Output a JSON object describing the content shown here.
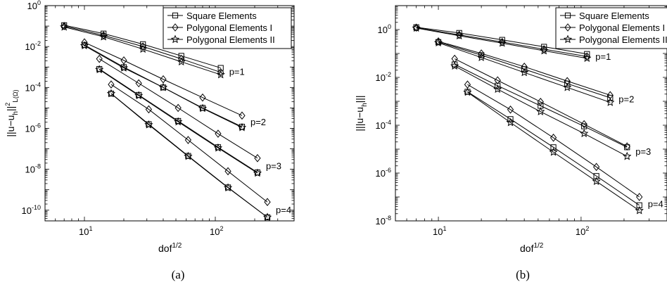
{
  "legend_labels": [
    "Square Elements",
    "Polygonal Elements I",
    "Polygonal Elements II"
  ],
  "chart_data": [
    {
      "type": "line",
      "panel_label": "(a)",
      "xlabel": "dof",
      "xlabel_sup": "1/2",
      "ylabel": "||u−u",
      "ylabel_sub": "h",
      "ylabel_norm": "||",
      "ylabel_sub2": "L",
      "ylabel_sup2": "2",
      "ylabel_dom": "(Ω)",
      "x_scale": "log",
      "y_scale": "log",
      "xlim": [
        5,
        400
      ],
      "ylim": [
        3e-11,
        1
      ],
      "x_ticks": [
        {
          "v": 10,
          "exp": "1"
        },
        {
          "v": 100,
          "exp": "2"
        }
      ],
      "y_ticks": [
        {
          "v": 1,
          "exp": "0"
        },
        {
          "v": 0.01,
          "exp": "-2"
        },
        {
          "v": 0.0001,
          "exp": "-4"
        },
        {
          "v": 1e-06,
          "exp": "-6"
        },
        {
          "v": 1e-08,
          "exp": "-8"
        },
        {
          "v": 1e-10,
          "exp": "-10"
        }
      ],
      "legend_position": "top-right",
      "grid": false,
      "series": [
        {
          "name": "Square Elements",
          "marker": "square",
          "order": "p=1",
          "points": [
            [
              7,
              0.11
            ],
            [
              14,
              0.043
            ],
            [
              28,
              0.013
            ],
            [
              55,
              0.0035
            ],
            [
              110,
              0.0009
            ]
          ]
        },
        {
          "name": "Polygonal Elements I",
          "marker": "diamond",
          "order": "p=1",
          "points": [
            [
              7,
              0.1
            ],
            [
              14,
              0.035
            ],
            [
              28,
              0.01
            ],
            [
              55,
              0.0025
            ],
            [
              110,
              0.00055
            ]
          ]
        },
        {
          "name": "Polygonal Elements II",
          "marker": "star",
          "order": "p=1",
          "points": [
            [
              7,
              0.09
            ],
            [
              14,
              0.03
            ],
            [
              28,
              0.0075
            ],
            [
              55,
              0.0018
            ],
            [
              110,
              0.00042
            ]
          ]
        },
        {
          "name": "Square Elements",
          "marker": "square",
          "order": "p=2",
          "points": [
            [
              10,
              0.012
            ],
            [
              20,
              0.00098
            ],
            [
              40,
              0.0001
            ],
            [
              80,
              1e-05
            ],
            [
              160,
              1.2e-06
            ]
          ]
        },
        {
          "name": "Polygonal Elements I",
          "marker": "diamond",
          "order": "p=2",
          "points": [
            [
              10,
              0.016
            ],
            [
              20,
              0.0021
            ],
            [
              40,
              0.00025
            ],
            [
              80,
              3.2e-05
            ],
            [
              160,
              4.2e-06
            ]
          ]
        },
        {
          "name": "Polygonal Elements II",
          "marker": "star",
          "order": "p=2",
          "points": [
            [
              10,
              0.011
            ],
            [
              20,
              0.0009
            ],
            [
              40,
              0.0001
            ],
            [
              80,
              9.5e-06
            ],
            [
              160,
              1.1e-06
            ]
          ]
        },
        {
          "name": "Square Elements",
          "marker": "square",
          "order": "p=3",
          "points": [
            [
              13,
              0.0008
            ],
            [
              26,
              4.3e-05
            ],
            [
              52,
              2.3e-06
            ],
            [
              105,
              1.2e-07
            ],
            [
              210,
              7e-09
            ]
          ]
        },
        {
          "name": "Polygonal Elements I",
          "marker": "diamond",
          "order": "p=3",
          "points": [
            [
              13,
              0.0025
            ],
            [
              26,
              0.00016
            ],
            [
              52,
              1e-05
            ],
            [
              105,
              5.5e-07
            ],
            [
              210,
              3.5e-08
            ]
          ]
        },
        {
          "name": "Polygonal Elements II",
          "marker": "star",
          "order": "p=3",
          "points": [
            [
              13,
              0.00075
            ],
            [
              26,
              4e-05
            ],
            [
              52,
              2.1e-06
            ],
            [
              105,
              1.1e-07
            ],
            [
              210,
              6.5e-09
            ]
          ]
        },
        {
          "name": "Square Elements",
          "marker": "square",
          "order": "p=4",
          "points": [
            [
              16,
              5e-05
            ],
            [
              31,
              1.6e-06
            ],
            [
              62,
              4.5e-08
            ],
            [
              125,
              1.3e-09
            ],
            [
              250,
              4.5e-11
            ]
          ]
        },
        {
          "name": "Polygonal Elements I",
          "marker": "diamond",
          "order": "p=4",
          "points": [
            [
              16,
              0.00014
            ],
            [
              31,
              8.5e-06
            ],
            [
              62,
              2.7e-07
            ],
            [
              125,
              8e-09
            ],
            [
              250,
              2.5e-10
            ]
          ]
        },
        {
          "name": "Polygonal Elements II",
          "marker": "star",
          "order": "p=4",
          "points": [
            [
              16,
              5e-05
            ],
            [
              31,
              1.5e-06
            ],
            [
              62,
              4.3e-08
            ],
            [
              125,
              1.25e-09
            ],
            [
              250,
              4.5e-11
            ]
          ]
        }
      ]
    },
    {
      "type": "line",
      "panel_label": "(b)",
      "xlabel": "dof",
      "xlabel_sup": "1/2",
      "ylabel": "|||u−u",
      "ylabel_sub": "h",
      "ylabel_norm": "|||",
      "ylabel_sub2": "",
      "ylabel_sup2": "",
      "ylabel_dom": "",
      "x_scale": "log",
      "y_scale": "log",
      "xlim": [
        5,
        400
      ],
      "ylim": [
        1e-08,
        10
      ],
      "x_ticks": [
        {
          "v": 10,
          "exp": "1"
        },
        {
          "v": 100,
          "exp": "2"
        }
      ],
      "y_ticks": [
        {
          "v": 1,
          "exp": "0"
        },
        {
          "v": 0.01,
          "exp": "-2"
        },
        {
          "v": 0.0001,
          "exp": "-4"
        },
        {
          "v": 1e-06,
          "exp": "-6"
        },
        {
          "v": 1e-08,
          "exp": "-8"
        }
      ],
      "legend_position": "top-right",
      "grid": false,
      "series": [
        {
          "name": "Square Elements",
          "marker": "square",
          "order": "p=1",
          "points": [
            [
              7,
              1.25
            ],
            [
              14,
              0.72
            ],
            [
              28,
              0.37
            ],
            [
              55,
              0.19
            ],
            [
              110,
              0.095
            ]
          ]
        },
        {
          "name": "Polygonal Elements I",
          "marker": "diamond",
          "order": "p=1",
          "points": [
            [
              7,
              1.2
            ],
            [
              14,
              0.6
            ],
            [
              28,
              0.3
            ],
            [
              55,
              0.15
            ],
            [
              110,
              0.075
            ]
          ]
        },
        {
          "name": "Polygonal Elements II",
          "marker": "star",
          "order": "p=1",
          "points": [
            [
              7,
              1.15
            ],
            [
              14,
              0.55
            ],
            [
              28,
              0.27
            ],
            [
              55,
              0.13
            ],
            [
              110,
              0.063
            ]
          ]
        },
        {
          "name": "Square Elements",
          "marker": "square",
          "order": "p=2",
          "points": [
            [
              10,
              0.3
            ],
            [
              20,
              0.085
            ],
            [
              40,
              0.022
            ],
            [
              80,
              0.0055
            ],
            [
              160,
              0.0014
            ]
          ]
        },
        {
          "name": "Polygonal Elements I",
          "marker": "diamond",
          "order": "p=2",
          "points": [
            [
              10,
              0.32
            ],
            [
              20,
              0.1
            ],
            [
              40,
              0.028
            ],
            [
              80,
              0.007
            ],
            [
              160,
              0.0018
            ]
          ]
        },
        {
          "name": "Polygonal Elements II",
          "marker": "star",
          "order": "p=2",
          "points": [
            [
              10,
              0.28
            ],
            [
              20,
              0.068
            ],
            [
              40,
              0.016
            ],
            [
              80,
              0.0038
            ],
            [
              160,
              0.0009
            ]
          ]
        },
        {
          "name": "Square Elements",
          "marker": "square",
          "order": "p=3",
          "points": [
            [
              13,
              0.035
            ],
            [
              26,
              0.0045
            ],
            [
              52,
              0.00065
            ],
            [
              105,
              9e-05
            ],
            [
              210,
              1.2e-05
            ]
          ]
        },
        {
          "name": "Polygonal Elements I",
          "marker": "diamond",
          "order": "p=3",
          "points": [
            [
              13,
              0.06
            ],
            [
              26,
              0.0075
            ],
            [
              52,
              0.00095
            ],
            [
              105,
              0.00011
            ],
            [
              210,
              1.3e-05
            ]
          ]
        },
        {
          "name": "Polygonal Elements II",
          "marker": "star",
          "order": "p=3",
          "points": [
            [
              13,
              0.03
            ],
            [
              26,
              0.0032
            ],
            [
              52,
              0.00037
            ],
            [
              105,
              4.5e-05
            ],
            [
              210,
              5e-06
            ]
          ]
        },
        {
          "name": "Square Elements",
          "marker": "square",
          "order": "p=4",
          "points": [
            [
              16,
              0.0025
            ],
            [
              32,
              0.00018
            ],
            [
              64,
              1.2e-05
            ],
            [
              128,
              7.5e-07
            ],
            [
              256,
              4.5e-08
            ]
          ]
        },
        {
          "name": "Polygonal Elements I",
          "marker": "diamond",
          "order": "p=4",
          "points": [
            [
              16,
              0.005
            ],
            [
              32,
              0.00045
            ],
            [
              64,
              3e-05
            ],
            [
              128,
              1.8e-06
            ],
            [
              256,
              1e-07
            ]
          ]
        },
        {
          "name": "Polygonal Elements II",
          "marker": "star",
          "order": "p=4",
          "points": [
            [
              16,
              0.0024
            ],
            [
              32,
              0.00013
            ],
            [
              64,
              7.5e-06
            ],
            [
              128,
              4.5e-07
            ],
            [
              256,
              2.7e-08
            ]
          ]
        }
      ]
    }
  ]
}
